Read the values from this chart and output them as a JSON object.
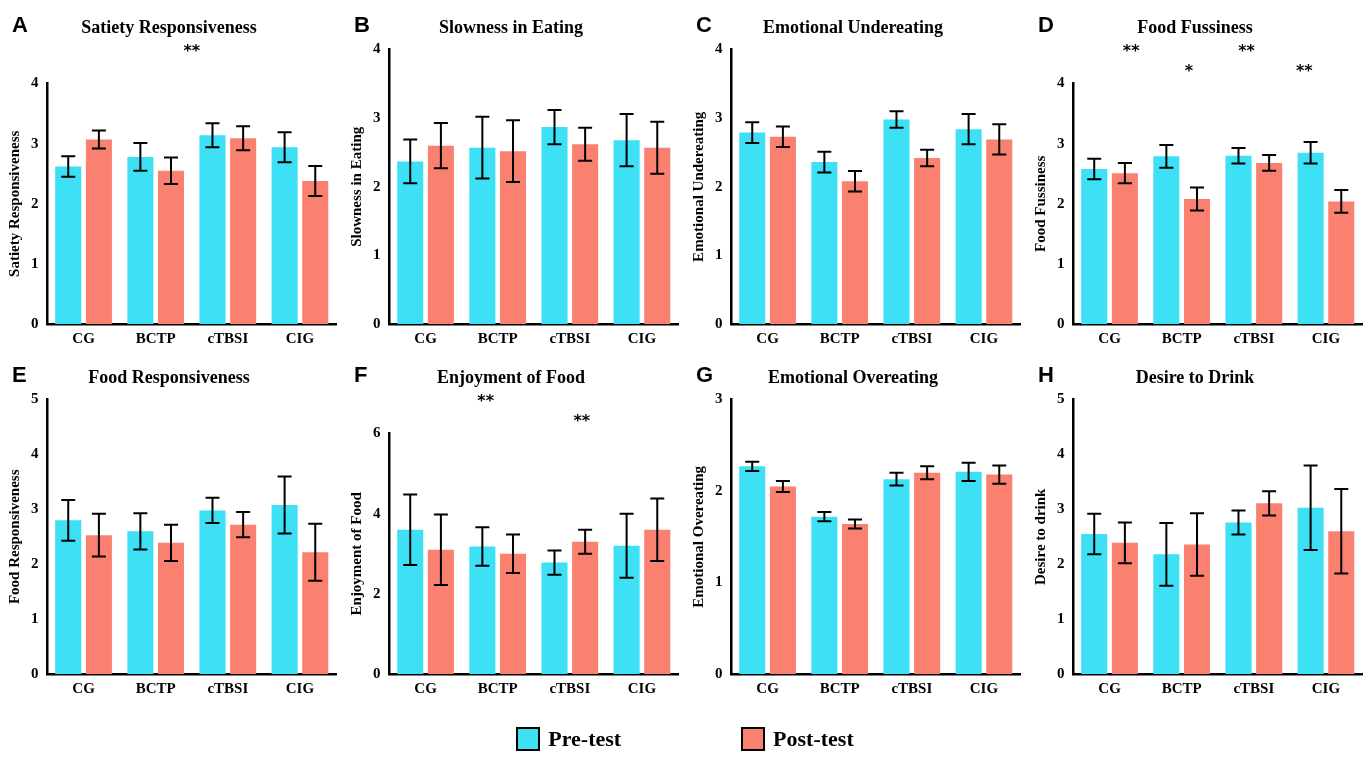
{
  "chart_data": [
    {
      "type": "bar",
      "subtitle": "A",
      "title": "Satiety Responsiveness",
      "ylabel": "Satiety Responsiveness",
      "categories": [
        "CG",
        "BCTP",
        "cTBSI",
        "CIG"
      ],
      "ylim": [
        0,
        4
      ],
      "yticks": [
        0,
        1,
        2,
        3,
        4
      ],
      "legend": "bottom",
      "annotations": [
        "**"
      ],
      "series": [
        {
          "name": "Pre-test",
          "color": "#3de0f5",
          "values": [
            2.62,
            2.78,
            3.14,
            2.94
          ],
          "errors": [
            0.17,
            0.23,
            0.2,
            0.25
          ]
        },
        {
          "name": "Post-test",
          "color": "#fa8070",
          "values": [
            3.07,
            2.55,
            3.09,
            2.38
          ],
          "errors": [
            0.15,
            0.22,
            0.2,
            0.25
          ]
        }
      ]
    },
    {
      "type": "bar",
      "subtitle": "B",
      "title": "Slowness in Eating",
      "ylabel": "Slowness in Eating",
      "categories": [
        "CG",
        "BCTP",
        "cTBSI",
        "CIG"
      ],
      "ylim": [
        0,
        4
      ],
      "yticks": [
        0,
        1,
        2,
        3,
        4
      ],
      "series": [
        {
          "color": "#3de0f5",
          "values": [
            2.37,
            2.57,
            2.87,
            2.68
          ],
          "errors": [
            0.32,
            0.45,
            0.25,
            0.38
          ]
        },
        {
          "color": "#fa8070",
          "values": [
            2.6,
            2.52,
            2.62,
            2.57
          ],
          "errors": [
            0.33,
            0.45,
            0.24,
            0.38
          ]
        }
      ]
    },
    {
      "type": "bar",
      "subtitle": "C",
      "title": "Emotional Undereating",
      "ylabel": "Emotional Undereating",
      "categories": [
        "CG",
        "BCTP",
        "cTBSI",
        "CIG"
      ],
      "ylim": [
        0,
        4
      ],
      "yticks": [
        0,
        1,
        2,
        3,
        4
      ],
      "series": [
        {
          "color": "#3de0f5",
          "values": [
            2.79,
            2.36,
            2.98,
            2.84
          ],
          "errors": [
            0.15,
            0.15,
            0.12,
            0.22
          ]
        },
        {
          "color": "#fa8070",
          "values": [
            2.73,
            2.08,
            2.42,
            2.69
          ],
          "errors": [
            0.15,
            0.15,
            0.12,
            0.22
          ]
        }
      ]
    },
    {
      "type": "bar",
      "subtitle": "D",
      "title": "Food Fussiness",
      "ylabel": "Food Fussiness",
      "categories": [
        "CG",
        "BCTP",
        "cTBSI",
        "CIG"
      ],
      "ylim": [
        0,
        4
      ],
      "yticks": [
        0,
        1,
        2,
        3,
        4
      ],
      "annotations": [
        "**",
        "*",
        "**",
        "**"
      ],
      "series": [
        {
          "color": "#3de0f5",
          "values": [
            2.58,
            2.79,
            2.8,
            2.85
          ],
          "errors": [
            0.17,
            0.19,
            0.13,
            0.18
          ]
        },
        {
          "color": "#fa8070",
          "values": [
            2.51,
            2.08,
            2.68,
            2.04
          ],
          "errors": [
            0.17,
            0.19,
            0.13,
            0.19
          ]
        }
      ]
    },
    {
      "type": "bar",
      "subtitle": "E",
      "title": "Food Responsiveness",
      "ylabel": "Food Responsiveness",
      "categories": [
        "CG",
        "BCTP",
        "cTBSI",
        "CIG"
      ],
      "ylim": [
        0,
        5
      ],
      "yticks": [
        0,
        1,
        2,
        3,
        4,
        5
      ],
      "series": [
        {
          "color": "#3de0f5",
          "values": [
            2.8,
            2.6,
            2.98,
            3.08
          ],
          "errors": [
            0.37,
            0.33,
            0.23,
            0.52
          ]
        },
        {
          "color": "#fa8070",
          "values": [
            2.53,
            2.39,
            2.72,
            2.22
          ],
          "errors": [
            0.39,
            0.33,
            0.23,
            0.52
          ]
        }
      ]
    },
    {
      "type": "bar",
      "subtitle": "F",
      "title": "Enjoyment of Food",
      "ylabel": "Enjoyment of Food",
      "categories": [
        "CG",
        "BCTP",
        "cTBSI",
        "CIG"
      ],
      "ylim": [
        0,
        6
      ],
      "yticks": [
        0,
        2,
        4,
        6
      ],
      "annotations": [
        "**",
        "**"
      ],
      "series": [
        {
          "color": "#3de0f5",
          "values": [
            3.6,
            3.18,
            2.78,
            3.2
          ],
          "errors": [
            0.88,
            0.48,
            0.3,
            0.8
          ]
        },
        {
          "color": "#fa8070",
          "values": [
            3.1,
            3.0,
            3.3,
            3.6
          ],
          "errors": [
            0.88,
            0.48,
            0.3,
            0.78
          ]
        }
      ]
    },
    {
      "type": "bar",
      "subtitle": "G",
      "title": "Emotional Overeating",
      "ylabel": "Emotional Overeating",
      "categories": [
        "CG",
        "BCTP",
        "cTBSI",
        "CIG"
      ],
      "ylim": [
        0,
        3
      ],
      "yticks": [
        0,
        1,
        2,
        3
      ],
      "series": [
        {
          "color": "#3de0f5",
          "values": [
            2.27,
            1.72,
            2.13,
            2.21
          ],
          "errors": [
            0.05,
            0.05,
            0.07,
            0.1
          ]
        },
        {
          "color": "#fa8070",
          "values": [
            2.05,
            1.64,
            2.2,
            2.18
          ],
          "errors": [
            0.06,
            0.05,
            0.07,
            0.1
          ]
        }
      ]
    },
    {
      "type": "bar",
      "subtitle": "H",
      "title": "Desire to Drink",
      "ylabel": "Desire to drink",
      "categories": [
        "CG",
        "BCTP",
        "cTBSI",
        "CIG"
      ],
      "ylim": [
        0,
        5
      ],
      "yticks": [
        0,
        1,
        2,
        3,
        4,
        5
      ],
      "series": [
        {
          "color": "#3de0f5",
          "values": [
            2.55,
            2.18,
            2.76,
            3.03
          ],
          "errors": [
            0.37,
            0.57,
            0.22,
            0.77
          ]
        },
        {
          "color": "#fa8070",
          "values": [
            2.39,
            2.36,
            3.11,
            2.6
          ],
          "errors": [
            0.37,
            0.57,
            0.22,
            0.77
          ]
        }
      ]
    }
  ]
}
